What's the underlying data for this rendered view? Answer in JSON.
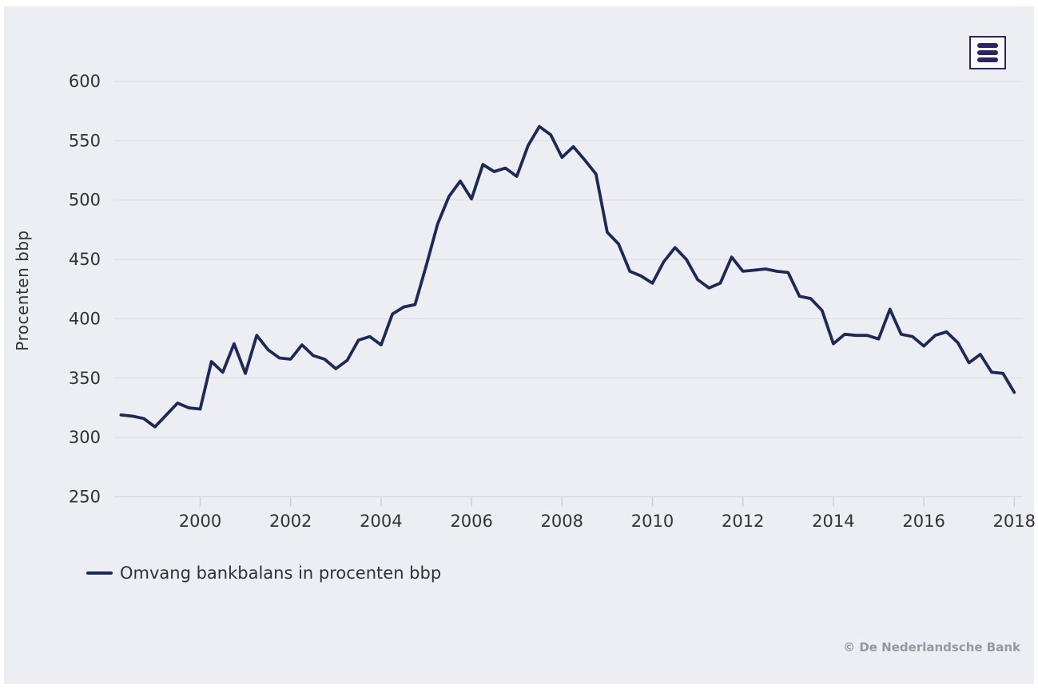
{
  "chart": {
    "y_axis_title": "Procenten bbp",
    "legend_label": "Omvang bankbalans in procenten bbp",
    "credits": "© De Nederlandsche Bank",
    "menu_icon": "hamburger-menu-icon"
  },
  "colors": {
    "panel_background": "#eceef3",
    "page_background": "#ffffff",
    "series_line": "#1d2a55",
    "gridline": "#d9dce2",
    "axis_line": "#cfd4dc",
    "tick_mark": "#c6d2df",
    "axis_label": "#333333",
    "legend_text": "#303138",
    "credits_text": "#97979f",
    "menu_icon_color": "#2e2462"
  },
  "chart_data": {
    "type": "line",
    "title": "",
    "xlabel": "",
    "ylabel": "Procenten bbp",
    "grid": true,
    "legend_position": "bottom-left",
    "x_ticks": [
      2000,
      2002,
      2004,
      2006,
      2008,
      2010,
      2012,
      2014,
      2016,
      2018
    ],
    "y_ticks": [
      250,
      300,
      350,
      400,
      450,
      500,
      550,
      600
    ],
    "ylim": [
      250,
      600
    ],
    "xlim": [
      1998.1,
      2018.2
    ],
    "series": [
      {
        "name": "Omvang bankbalans in procenten bbp",
        "frequency": "quarterly",
        "start_year": 1998.25,
        "interval_years": 0.25,
        "values": [
          319,
          318,
          316,
          309,
          319,
          329,
          325,
          324,
          364,
          355,
          379,
          354,
          386,
          374,
          367,
          366,
          378,
          369,
          366,
          358,
          365,
          382,
          385,
          378,
          404,
          410,
          412,
          445,
          480,
          503,
          516,
          501,
          530,
          524,
          527,
          520,
          546,
          562,
          555,
          536,
          545,
          534,
          522,
          473,
          463,
          440,
          436,
          430,
          448,
          460,
          450,
          433,
          426,
          430,
          452,
          440,
          441,
          442,
          440,
          439,
          419,
          417,
          407,
          379,
          387,
          386,
          386,
          383,
          408,
          387,
          385,
          377,
          386,
          389,
          380,
          363,
          370,
          355,
          354,
          338
        ]
      }
    ]
  }
}
